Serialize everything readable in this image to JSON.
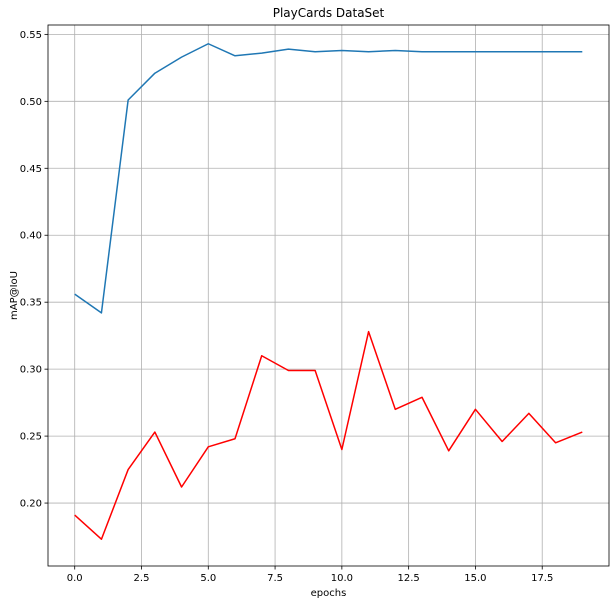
{
  "chart_data": {
    "type": "line",
    "title": "PlayCards DataSet",
    "xlabel": "epochs",
    "ylabel": "mAP@IoU",
    "xlim": [
      -1,
      20
    ],
    "ylim": [
      0.153,
      0.557
    ],
    "grid": true,
    "x_ticks": [
      0.0,
      2.5,
      5.0,
      7.5,
      10.0,
      12.5,
      15.0,
      17.5
    ],
    "x_tick_labels": [
      "0.0",
      "2.5",
      "5.0",
      "7.5",
      "10.0",
      "12.5",
      "15.0",
      "17.5"
    ],
    "y_ticks": [
      0.2,
      0.25,
      0.3,
      0.35,
      0.4,
      0.45,
      0.5,
      0.55
    ],
    "y_tick_labels": [
      "0.20",
      "0.25",
      "0.30",
      "0.35",
      "0.40",
      "0.45",
      "0.50",
      "0.55"
    ],
    "x": [
      0,
      1,
      2,
      3,
      4,
      5,
      6,
      7,
      8,
      9,
      10,
      11,
      12,
      13,
      14,
      15,
      16,
      17,
      18,
      19
    ],
    "series": [
      {
        "color": "#1f77b4",
        "values": [
          0.356,
          0.342,
          0.501,
          0.521,
          0.533,
          0.543,
          0.534,
          0.536,
          0.539,
          0.537,
          0.538,
          0.537,
          0.538,
          0.537,
          0.537,
          0.537,
          0.537,
          0.537,
          0.537,
          0.537
        ]
      },
      {
        "color": "#ff0000",
        "values": [
          0.191,
          0.173,
          0.225,
          0.253,
          0.212,
          0.242,
          0.248,
          0.31,
          0.299,
          0.299,
          0.24,
          0.328,
          0.27,
          0.279,
          0.239,
          0.27,
          0.246,
          0.267,
          0.245,
          0.253
        ]
      }
    ]
  }
}
